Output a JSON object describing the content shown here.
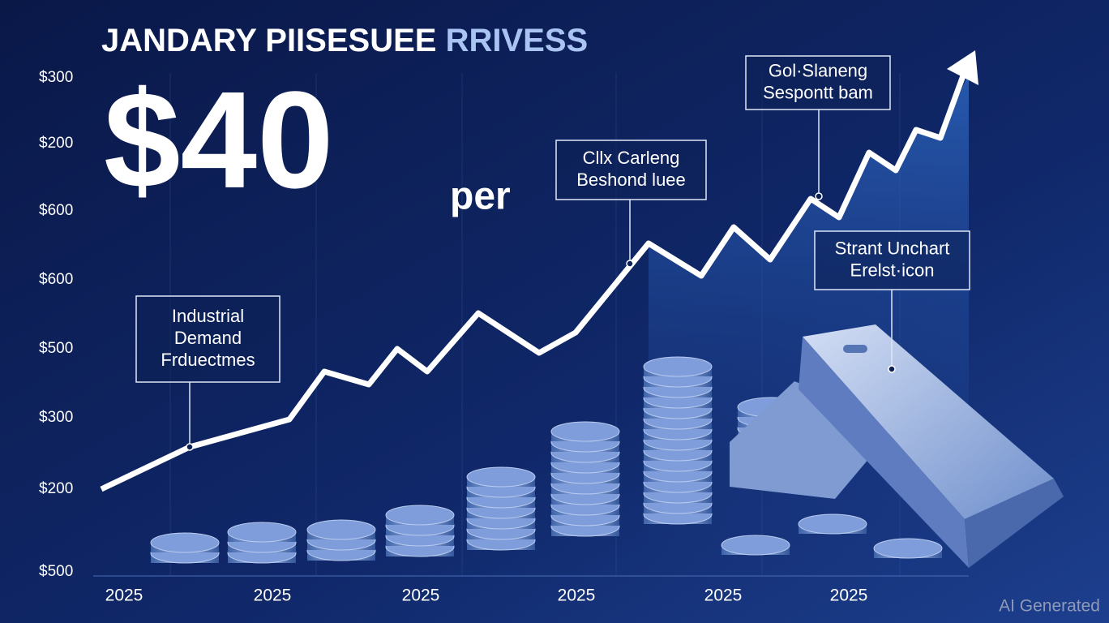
{
  "header": {
    "title_main": "JANDARY PIISESUEE",
    "title_accent": "RRIVESS",
    "big_number": "$40",
    "unit": "per"
  },
  "y_labels": [
    "$300",
    "$200",
    "$600",
    "$600",
    "$500",
    "$300",
    "$200",
    "$500"
  ],
  "x_labels": [
    "2025",
    "2025",
    "2025",
    "2025",
    "2025",
    "2025"
  ],
  "callouts": [
    {
      "lines": [
        "Industrial",
        "Demand",
        "Frduectmes"
      ]
    },
    {
      "lines": [
        "Cllx Carleng",
        "Beshond luee"
      ]
    },
    {
      "lines": [
        "Gol·Slaneng",
        "Sespontt bam"
      ]
    },
    {
      "lines": [
        "Strant Unchart",
        "Erelst·icon"
      ]
    }
  ],
  "watermark": "AI Generated"
}
